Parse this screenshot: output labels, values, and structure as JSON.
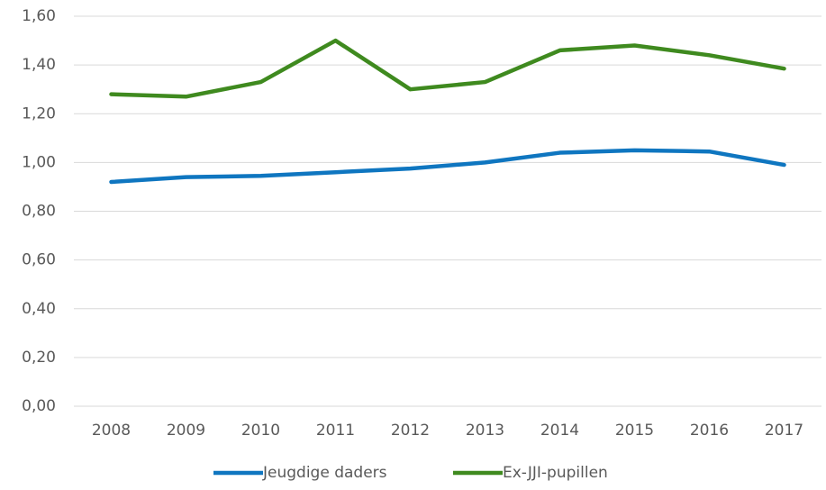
{
  "chart_data": {
    "type": "line",
    "categories": [
      "2008",
      "2009",
      "2010",
      "2011",
      "2012",
      "2013",
      "2014",
      "2015",
      "2016",
      "2017"
    ],
    "series": [
      {
        "name": "Jeugdige daders",
        "color": "#0f76c0",
        "values": [
          0.92,
          0.94,
          0.945,
          0.96,
          0.975,
          1.0,
          1.04,
          1.05,
          1.045,
          0.99
        ]
      },
      {
        "name": "Ex-JJI-pupillen",
        "color": "#3f8a1f",
        "values": [
          1.28,
          1.27,
          1.33,
          1.5,
          1.3,
          1.33,
          1.46,
          1.48,
          1.44,
          1.385
        ]
      }
    ],
    "ylim": [
      0,
      1.6
    ],
    "yticks": [
      {
        "value": 0,
        "label": "0,00"
      },
      {
        "value": 0.2,
        "label": "0,20"
      },
      {
        "value": 0.4,
        "label": "0,40"
      },
      {
        "value": 0.6,
        "label": "0,60"
      },
      {
        "value": 0.8,
        "label": "0,80"
      },
      {
        "value": 1.0,
        "label": "1,00"
      },
      {
        "value": 1.2,
        "label": "1,20"
      },
      {
        "value": 1.4,
        "label": "1,40"
      },
      {
        "value": 1.6,
        "label": "1,60"
      }
    ],
    "grid": true,
    "legend": "bottom"
  }
}
